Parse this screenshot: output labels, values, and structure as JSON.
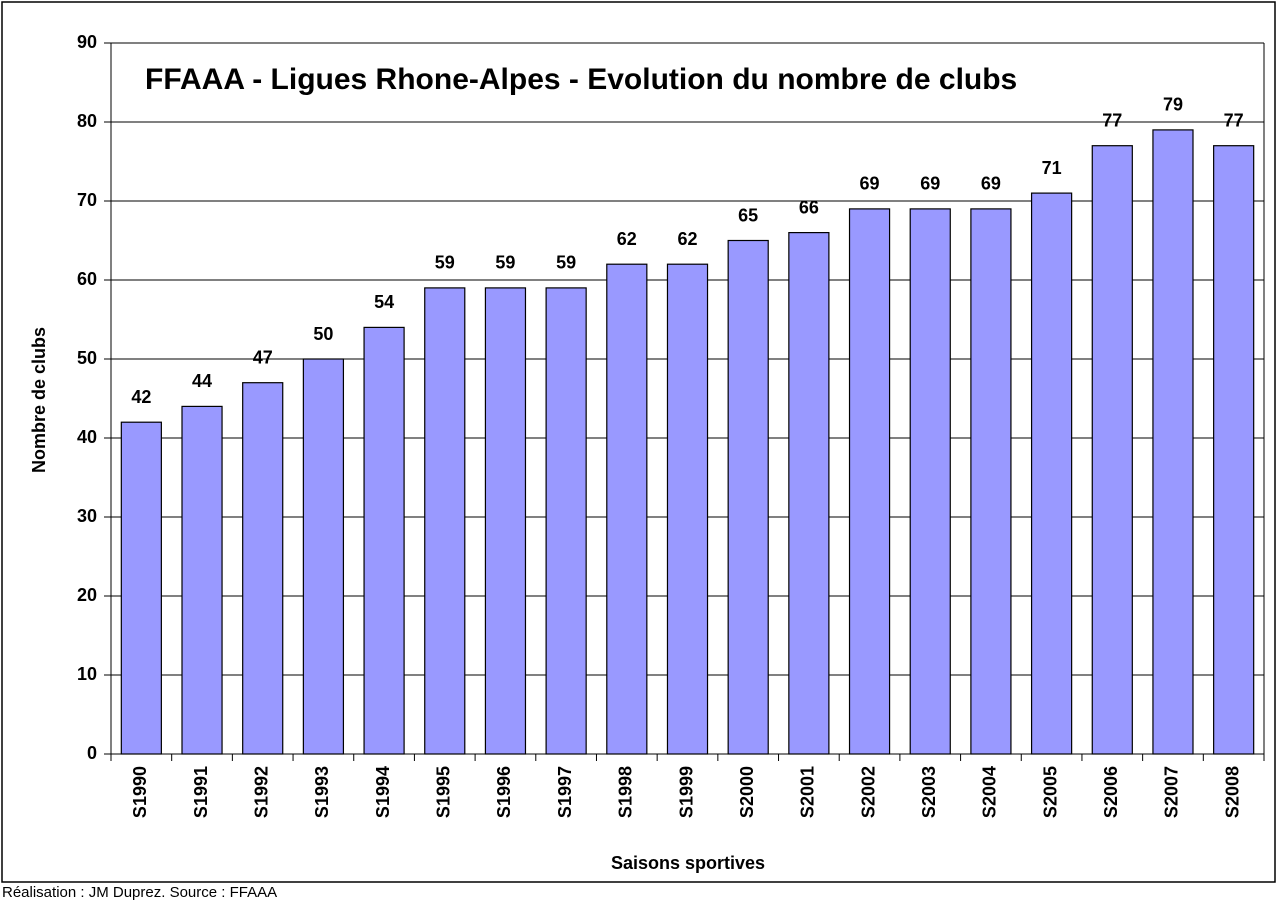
{
  "chart_data": {
    "type": "bar",
    "title": "FFAAA - Ligues Rhone-Alpes - Evolution du nombre de clubs",
    "x_label": "Saisons sportives",
    "y_label": "Nombre de clubs",
    "source": "Réalisation : JM Duprez. Source : FFAAA",
    "categories": [
      "S1990",
      "S1991",
      "S1992",
      "S1993",
      "S1994",
      "S1995",
      "S1996",
      "S1997",
      "S1998",
      "S1999",
      "S2000",
      "S2001",
      "S2002",
      "S2003",
      "S2004",
      "S2005",
      "S2006",
      "S2007",
      "S2008"
    ],
    "values": [
      42,
      44,
      47,
      50,
      54,
      59,
      59,
      59,
      62,
      62,
      65,
      66,
      69,
      69,
      69,
      71,
      77,
      79,
      77
    ],
    "color": "#9999ff",
    "ylim": [
      0,
      90
    ],
    "yticks": [
      0,
      10,
      20,
      30,
      40,
      50,
      60,
      70,
      80,
      90
    ],
    "grid": true
  }
}
